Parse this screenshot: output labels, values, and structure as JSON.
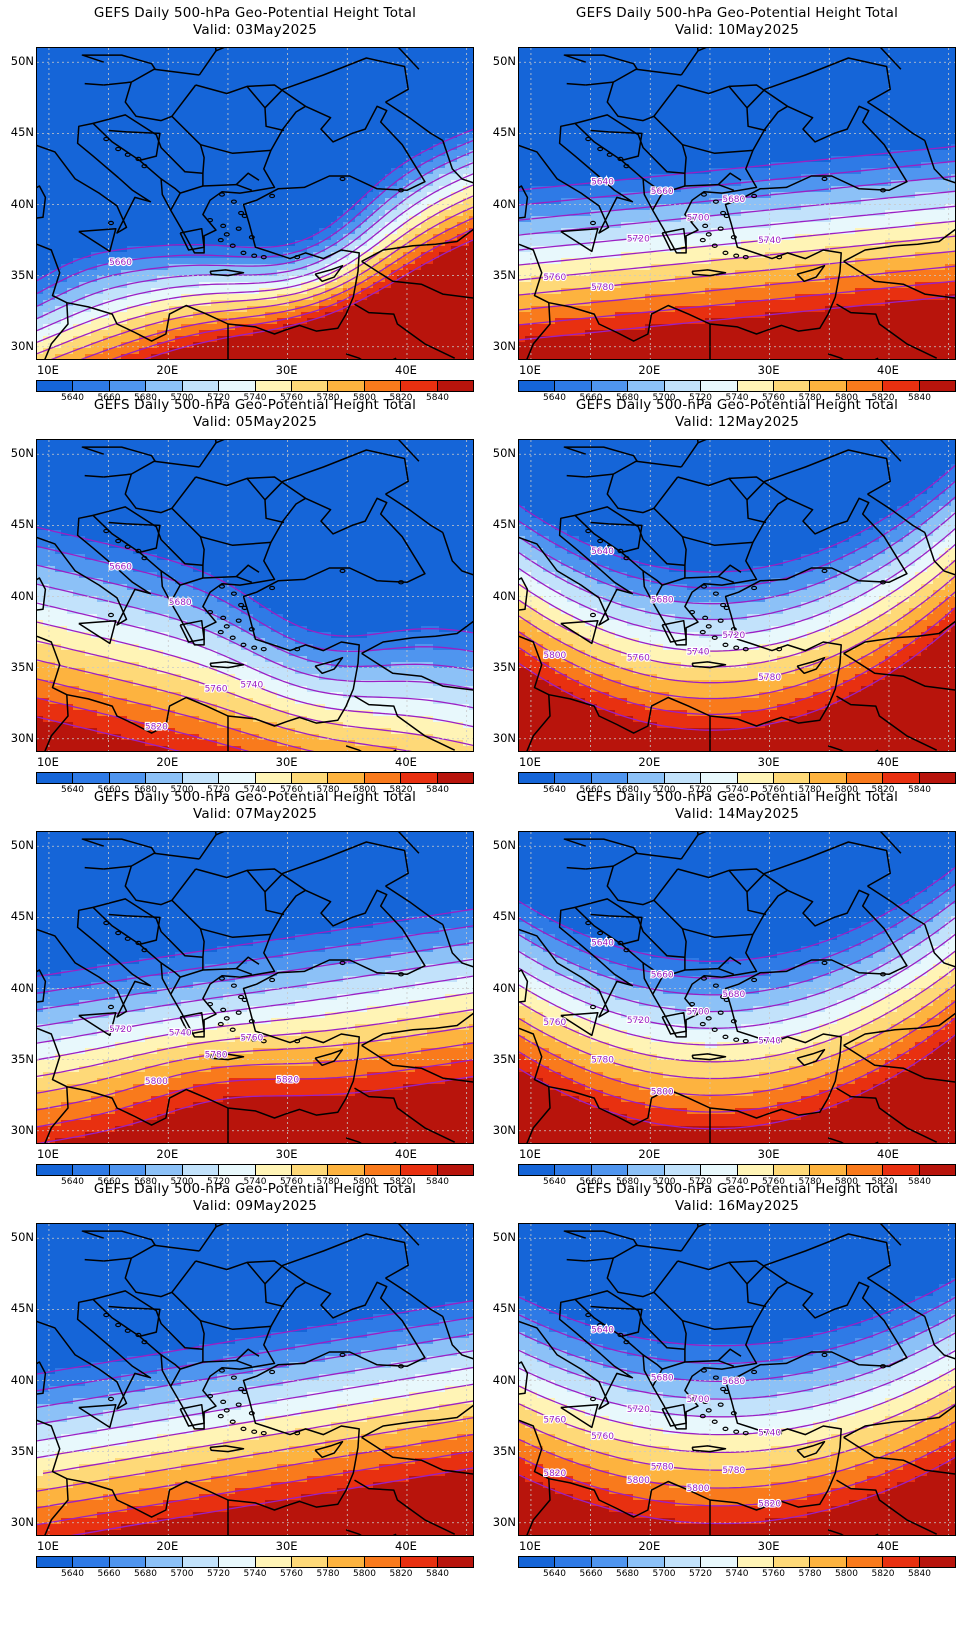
{
  "figure": {
    "title": "GEFS Daily 500-hPa Geo-Potential Height Total",
    "valid_prefix": "Valid:",
    "lat_labels": [
      "50N",
      "45N",
      "40N",
      "35N",
      "30N"
    ],
    "lon_labels": [
      "10E",
      "20E",
      "30E",
      "40E"
    ],
    "colorbar": {
      "tick_labels": [
        "5640",
        "5660",
        "5680",
        "5700",
        "5720",
        "5740",
        "5760",
        "5780",
        "5800",
        "5820",
        "5840"
      ],
      "colors": [
        "#1565d8",
        "#2e7ae6",
        "#4f95ef",
        "#8cc1f7",
        "#c2e2fb",
        "#e8f8fc",
        "#fff4b6",
        "#fed978",
        "#fdb33f",
        "#f97a1c",
        "#e83010",
        "#b8140c"
      ]
    }
  },
  "panels": [
    {
      "id": "p1",
      "valid_text": "Valid: 03May2025",
      "contour_labels": [
        "5660"
      ]
    },
    {
      "id": "p2",
      "valid_text": "Valid: 10May2025",
      "contour_labels": [
        "5640",
        "5660",
        "5680",
        "5700",
        "5720",
        "5740",
        "5760",
        "5780"
      ]
    },
    {
      "id": "p3",
      "valid_text": "Valid: 05May2025",
      "contour_labels": [
        "5660",
        "5680",
        "5740",
        "5760",
        "5820"
      ]
    },
    {
      "id": "p4",
      "valid_text": "Valid: 12May2025",
      "contour_labels": [
        "5640",
        "5680",
        "5720",
        "5740",
        "5760",
        "5780",
        "5800"
      ]
    },
    {
      "id": "p5",
      "valid_text": "Valid: 07May2025",
      "contour_labels": [
        "5720",
        "5740",
        "5760",
        "5780",
        "5800",
        "5820"
      ]
    },
    {
      "id": "p6",
      "valid_text": "Valid: 14May2025",
      "contour_labels": [
        "5640",
        "5660",
        "5680",
        "5700",
        "5720",
        "5740",
        "5760",
        "5780",
        "5800"
      ]
    },
    {
      "id": "p7",
      "valid_text": "Valid: 09May2025",
      "contour_labels": []
    },
    {
      "id": "p8",
      "valid_text": "Valid: 16May2025",
      "contour_labels": [
        "5640",
        "5680",
        "5680",
        "5700",
        "5720",
        "5740",
        "5760",
        "5760",
        "5780",
        "5780",
        "5800",
        "5800",
        "5820",
        "5820"
      ]
    }
  ]
}
